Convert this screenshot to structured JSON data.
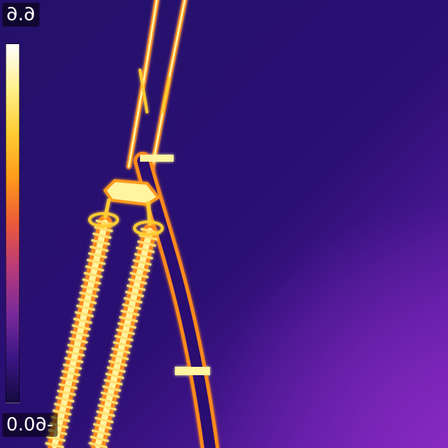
{
  "thermal": {
    "scale_max": "6.6",
    "scale_min": "-60.0",
    "palette": [
      "#ffffff",
      "#fff08a",
      "#ffcc33",
      "#ff9a1a",
      "#ec5a3a",
      "#b83a7a",
      "#7a2a9a",
      "#3b1685",
      "#150a40"
    ],
    "background_colors": [
      "#2a1070",
      "#4a1aa0",
      "#6a22b8"
    ],
    "hot_color": "#fff4a0",
    "edge_color": "#ff8a1a"
  }
}
